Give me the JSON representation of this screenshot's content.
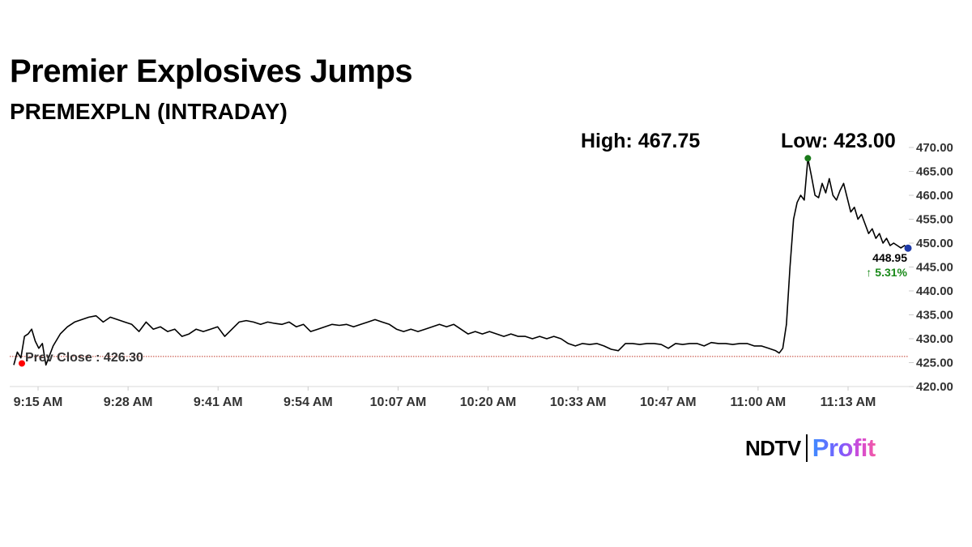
{
  "title": "Premier Explosives Jumps",
  "subtitle": "PREMEXPLN (INTRADAY)",
  "logo": {
    "left": "NDTV",
    "right": "Profit"
  },
  "colors": {
    "line": "#000000",
    "prev_close_line": "#c0392b",
    "prev_close_dot": "#ff0000",
    "high_dot": "#1a7a1a",
    "last_dot": "#1e3aa8",
    "change_up": "#1a8a1a"
  },
  "chart_data": {
    "type": "line",
    "title": "Premier Explosives Jumps",
    "subtitle": "PREMEXPLN (INTRADAY)",
    "x_ticks": [
      "9:15 AM",
      "9:28 AM",
      "9:41 AM",
      "9:54 AM",
      "10:07 AM",
      "10:20 AM",
      "10:33 AM",
      "10:47 AM",
      "11:00 AM",
      "11:13 AM"
    ],
    "y_ticks": [
      "420.00",
      "425.00",
      "430.00",
      "435.00",
      "440.00",
      "445.00",
      "450.00",
      "455.00",
      "460.00",
      "465.00",
      "470.00"
    ],
    "ylim": [
      420,
      470
    ],
    "y_axis_position": "right",
    "grid": false,
    "high_label": "High: 467.75",
    "low_label": "Low: 423.00",
    "prev_close_label": "Prev Close : 426.30",
    "prev_close": 426.3,
    "last_price": "448.95",
    "change": "5.31%",
    "change_arrow": "↑",
    "series": [
      {
        "values": [
          [
            0,
            424.5
          ],
          [
            1,
            427.2
          ],
          [
            2,
            426.0
          ],
          [
            3,
            430.5
          ],
          [
            4,
            431.0
          ],
          [
            5,
            432.0
          ],
          [
            6,
            429.5
          ],
          [
            7,
            428.0
          ],
          [
            8,
            429.0
          ],
          [
            9,
            424.5
          ],
          [
            11,
            428.5
          ],
          [
            13,
            431.0
          ],
          [
            15,
            432.5
          ],
          [
            17,
            433.5
          ],
          [
            19,
            434.0
          ],
          [
            21,
            434.5
          ],
          [
            23,
            434.8
          ],
          [
            25,
            433.5
          ],
          [
            27,
            434.5
          ],
          [
            29,
            434.0
          ],
          [
            31,
            433.5
          ],
          [
            33,
            433.0
          ],
          [
            35,
            431.5
          ],
          [
            37,
            433.5
          ],
          [
            39,
            432.0
          ],
          [
            41,
            432.5
          ],
          [
            43,
            431.5
          ],
          [
            45,
            432.0
          ],
          [
            47,
            430.5
          ],
          [
            49,
            431.0
          ],
          [
            51,
            432.0
          ],
          [
            53,
            431.5
          ],
          [
            55,
            432.0
          ],
          [
            57,
            432.5
          ],
          [
            59,
            430.5
          ],
          [
            61,
            432.0
          ],
          [
            63,
            433.5
          ],
          [
            65,
            433.8
          ],
          [
            67,
            433.5
          ],
          [
            69,
            433.0
          ],
          [
            71,
            433.5
          ],
          [
            73,
            433.2
          ],
          [
            75,
            433.0
          ],
          [
            77,
            433.5
          ],
          [
            79,
            432.5
          ],
          [
            81,
            433.0
          ],
          [
            83,
            431.5
          ],
          [
            85,
            432.0
          ],
          [
            87,
            432.5
          ],
          [
            89,
            433.0
          ],
          [
            91,
            432.8
          ],
          [
            93,
            433.0
          ],
          [
            95,
            432.5
          ],
          [
            97,
            433.0
          ],
          [
            99,
            433.5
          ],
          [
            101,
            434.0
          ],
          [
            103,
            433.5
          ],
          [
            105,
            433.0
          ],
          [
            107,
            432.0
          ],
          [
            109,
            431.5
          ],
          [
            111,
            432.0
          ],
          [
            113,
            431.5
          ],
          [
            115,
            432.0
          ],
          [
            117,
            432.5
          ],
          [
            119,
            433.0
          ],
          [
            121,
            432.5
          ],
          [
            123,
            433.0
          ],
          [
            125,
            432.0
          ],
          [
            127,
            431.0
          ],
          [
            129,
            431.5
          ],
          [
            131,
            431.0
          ],
          [
            133,
            431.5
          ],
          [
            135,
            431.0
          ],
          [
            137,
            430.5
          ],
          [
            139,
            431.0
          ],
          [
            141,
            430.5
          ],
          [
            143,
            430.5
          ],
          [
            145,
            430.0
          ],
          [
            147,
            430.5
          ],
          [
            149,
            430.0
          ],
          [
            151,
            430.5
          ],
          [
            153,
            430.0
          ],
          [
            155,
            429.0
          ],
          [
            157,
            428.5
          ],
          [
            159,
            429.0
          ],
          [
            161,
            428.8
          ],
          [
            163,
            429.0
          ],
          [
            165,
            428.5
          ],
          [
            167,
            427.8
          ],
          [
            169,
            427.5
          ],
          [
            171,
            429.0
          ],
          [
            173,
            429.0
          ],
          [
            175,
            428.8
          ],
          [
            177,
            429.0
          ],
          [
            179,
            429.0
          ],
          [
            181,
            428.8
          ],
          [
            183,
            428.0
          ],
          [
            185,
            429.0
          ],
          [
            187,
            428.8
          ],
          [
            189,
            429.0
          ],
          [
            191,
            429.0
          ],
          [
            193,
            428.5
          ],
          [
            195,
            429.2
          ],
          [
            197,
            429.0
          ],
          [
            199,
            429.0
          ],
          [
            201,
            428.8
          ],
          [
            203,
            429.0
          ],
          [
            205,
            429.0
          ],
          [
            207,
            428.5
          ],
          [
            209,
            428.5
          ],
          [
            211,
            428.0
          ],
          [
            213,
            427.5
          ],
          [
            214,
            427.0
          ],
          [
            215,
            428.0
          ],
          [
            216,
            433.0
          ],
          [
            217,
            445.0
          ],
          [
            218,
            455.0
          ],
          [
            219,
            458.5
          ],
          [
            220,
            460.0
          ],
          [
            221,
            459.0
          ],
          [
            222,
            467.75
          ],
          [
            223,
            464.0
          ],
          [
            224,
            460.0
          ],
          [
            225,
            459.5
          ],
          [
            226,
            462.5
          ],
          [
            227,
            460.5
          ],
          [
            228,
            463.5
          ],
          [
            229,
            460.0
          ],
          [
            230,
            459.0
          ],
          [
            231,
            461.0
          ],
          [
            232,
            462.5
          ],
          [
            233,
            459.5
          ],
          [
            234,
            456.5
          ],
          [
            235,
            457.5
          ],
          [
            236,
            455.0
          ],
          [
            237,
            456.0
          ],
          [
            238,
            454.0
          ],
          [
            239,
            452.0
          ],
          [
            240,
            453.0
          ],
          [
            241,
            451.0
          ],
          [
            242,
            452.0
          ],
          [
            243,
            450.0
          ],
          [
            244,
            451.0
          ],
          [
            245,
            449.5
          ],
          [
            246,
            450.0
          ],
          [
            247,
            449.5
          ],
          [
            248,
            449.0
          ],
          [
            249,
            449.5
          ],
          [
            250,
            448.95
          ]
        ]
      }
    ],
    "x_range": [
      0,
      250
    ]
  }
}
